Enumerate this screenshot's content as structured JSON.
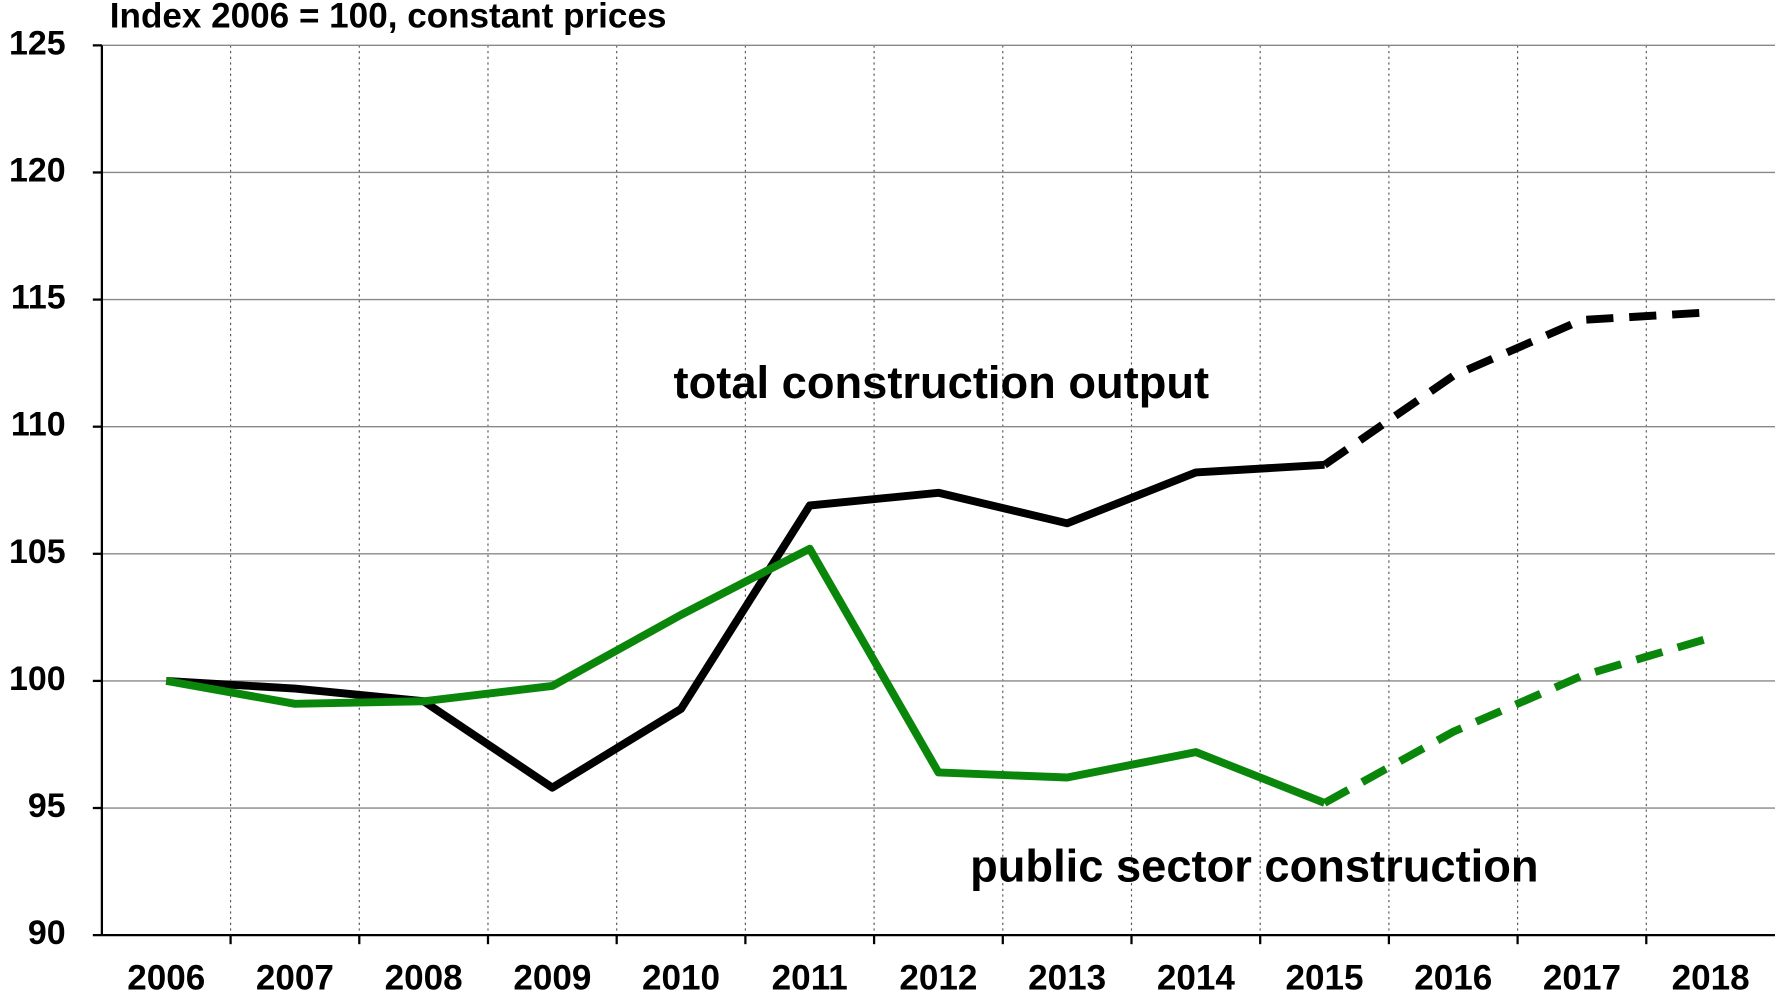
{
  "chart_data": {
    "type": "line",
    "title": "Index 2006 = 100, constant prices",
    "categories": [
      "2006",
      "2007",
      "2008",
      "2009",
      "2010",
      "2011",
      "2012",
      "2013",
      "2014",
      "2015",
      "2016",
      "2017",
      "2018"
    ],
    "dashed_from_category": "2015",
    "series": [
      {
        "name": "total construction output",
        "color": "#000000",
        "values": [
          100,
          99.7,
          99.2,
          95.8,
          98.9,
          106.9,
          107.4,
          106.2,
          108.2,
          108.5,
          112.0,
          114.2,
          114.5
        ]
      },
      {
        "name": "public sector construction",
        "color": "#0a870a",
        "values": [
          100,
          99.1,
          99.2,
          99.8,
          102.6,
          105.2,
          96.4,
          96.2,
          97.2,
          95.2,
          98.0,
          100.2,
          101.7
        ]
      }
    ],
    "ylim": [
      90,
      125
    ],
    "yticks": [
      90,
      95,
      100,
      105,
      110,
      115,
      120,
      125
    ],
    "grid": true
  }
}
